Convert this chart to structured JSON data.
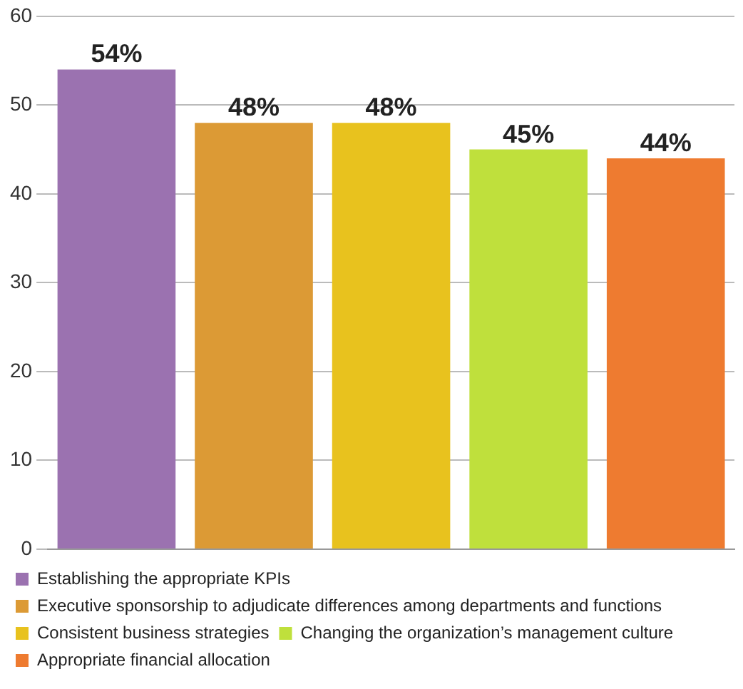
{
  "chart_data": {
    "type": "bar",
    "categories": [
      null,
      null,
      null,
      null,
      null
    ],
    "series": [
      {
        "name": "Establishing the appropriate KPIs",
        "color": "#9b72b0",
        "values": [
          54,
          null,
          null,
          null,
          null
        ],
        "value_labels": [
          "54%",
          null,
          null,
          null,
          null
        ]
      },
      {
        "name": "Executive sponsorship to adjudicate differences among departments and functions",
        "color": "#dc9a35",
        "values": [
          null,
          48,
          null,
          null,
          null
        ],
        "value_labels": [
          null,
          "48%",
          null,
          null,
          null
        ]
      },
      {
        "name": "Consistent business strategies",
        "color": "#e8c21e",
        "values": [
          null,
          null,
          48,
          null,
          null
        ],
        "value_labels": [
          null,
          null,
          "48%",
          null,
          null
        ]
      },
      {
        "name": "Changing the organization’s management culture",
        "color": "#bfe03c",
        "values": [
          null,
          null,
          null,
          45,
          null
        ],
        "value_labels": [
          null,
          null,
          null,
          "45%",
          null
        ]
      },
      {
        "name": "Appropriate financial allocation",
        "color": "#ee7b30",
        "values": [
          null,
          null,
          null,
          null,
          44
        ],
        "value_labels": [
          null,
          null,
          null,
          null,
          "44%"
        ]
      }
    ],
    "ylim": [
      0,
      60
    ],
    "yticks": [
      0,
      10,
      20,
      30,
      40,
      50,
      60
    ],
    "grid": "y",
    "legend": "bottom",
    "tick_labels": "y"
  }
}
